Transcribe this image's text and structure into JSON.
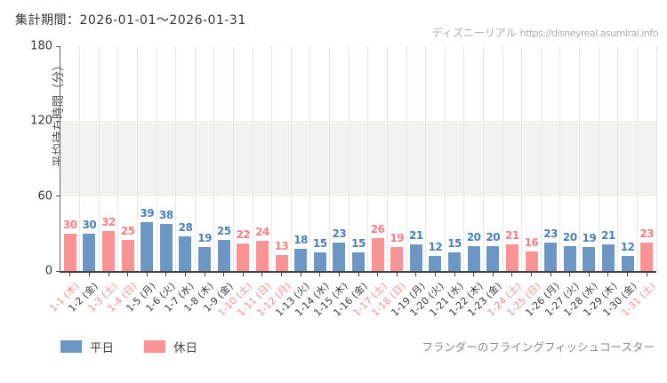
{
  "header": {
    "period_label": "集計期間：2026-01-01～2026-01-31",
    "site_name": "ディズニーリアル",
    "site_url": "https://disneyreal.asumirai.info"
  },
  "chart_data": {
    "type": "bar",
    "title": "",
    "xlabel": "",
    "ylabel": "平均待ち時間（分）",
    "ylim": [
      0,
      180
    ],
    "yticks": [
      0,
      60,
      120,
      180
    ],
    "shaded_band": [
      60,
      120
    ],
    "grid": "vertical",
    "legend_position": "bottom-left",
    "categories": [
      "1-1 (木)",
      "1-2 (金)",
      "1-3 (土)",
      "1-4 (日)",
      "1-5 (月)",
      "1-6 (火)",
      "1-7 (水)",
      "1-8 (木)",
      "1-9 (金)",
      "1-10 (土)",
      "1-11 (日)",
      "1-12 (月)",
      "1-13 (火)",
      "1-14 (水)",
      "1-15 (木)",
      "1-16 (金)",
      "1-17 (土)",
      "1-18 (日)",
      "1-19 (月)",
      "1-20 (火)",
      "1-21 (水)",
      "1-22 (木)",
      "1-23 (金)",
      "1-24 (土)",
      "1-25 (日)",
      "1-26 (月)",
      "1-27 (火)",
      "1-28 (水)",
      "1-29 (木)",
      "1-30 (金)",
      "1-31 (土)"
    ],
    "values": [
      30,
      30,
      32,
      25,
      39,
      38,
      28,
      19,
      25,
      22,
      24,
      13,
      18,
      15,
      23,
      15,
      26,
      19,
      21,
      12,
      15,
      20,
      20,
      21,
      16,
      23,
      20,
      19,
      21,
      12,
      23
    ],
    "day_types": [
      "holiday",
      "weekday",
      "holiday",
      "holiday",
      "weekday",
      "weekday",
      "weekday",
      "weekday",
      "weekday",
      "holiday",
      "holiday",
      "holiday",
      "weekday",
      "weekday",
      "weekday",
      "weekday",
      "holiday",
      "holiday",
      "weekday",
      "weekday",
      "weekday",
      "weekday",
      "weekday",
      "holiday",
      "holiday",
      "weekday",
      "weekday",
      "weekday",
      "weekday",
      "weekday",
      "holiday"
    ],
    "colors": {
      "weekday_bar": "#6c97c4",
      "holiday_bar": "#fa9394",
      "weekday_value_label": "#4a80b5",
      "holiday_value_label": "#f87f81",
      "weekday_tick_label": "#3a3a3a",
      "holiday_tick_label": "#f89092"
    }
  },
  "legend": {
    "weekday": "平日",
    "holiday": "休日"
  },
  "footer": {
    "attraction": "フランダーのフライングフィッシュコースター"
  }
}
